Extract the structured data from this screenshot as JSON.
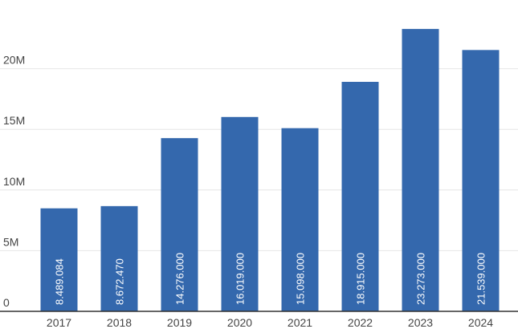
{
  "chart_data": {
    "type": "bar",
    "title": "",
    "xlabel": "",
    "ylabel": "",
    "categories": [
      "2017",
      "2018",
      "2019",
      "2020",
      "2021",
      "2022",
      "2023",
      "2024"
    ],
    "values": [
      8489084,
      8672470,
      14276000,
      16019000,
      15098000,
      18915000,
      23273000,
      21539000
    ],
    "value_labels": [
      "8.489.084",
      "8.672.470",
      "14.276.000",
      "16.019.000",
      "15.098.000",
      "18.915.000",
      "23.273.000",
      "21.539.000"
    ],
    "y_ticks": [
      0,
      5000000,
      10000000,
      15000000,
      20000000
    ],
    "y_tick_labels": [
      "0",
      "5M",
      "10M",
      "15M",
      "20M"
    ],
    "ylim": [
      0,
      25000000
    ],
    "grid": true,
    "legend": "none",
    "colors": {
      "bar": "#3468ad",
      "grid": "#e6e6e6",
      "axis": "#333333",
      "tick_text": "#444444",
      "bar_text": "#ffffff"
    }
  }
}
